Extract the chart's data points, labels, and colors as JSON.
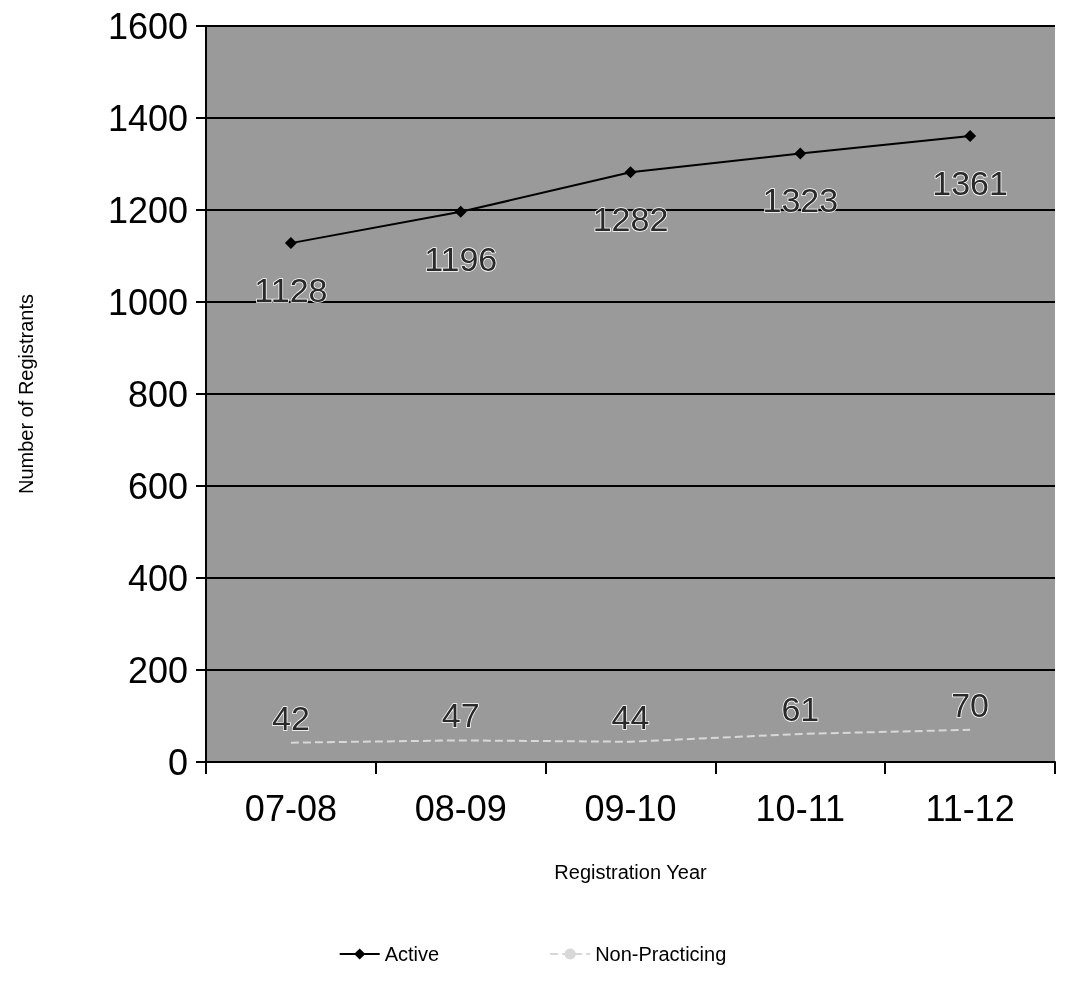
{
  "chart_data": {
    "type": "line",
    "xlabel": "Registration Year",
    "ylabel": "Number of Registrants",
    "categories": [
      "07-08",
      "08-09",
      "09-10",
      "10-11",
      "11-12"
    ],
    "series": [
      {
        "name": "Active",
        "color": "#000000",
        "values": [
          1128,
          1196,
          1282,
          1323,
          1361
        ],
        "marker": "diamond",
        "line_style": "solid"
      },
      {
        "name": "Non-Practicing",
        "color": "#d8d8d8",
        "values": [
          42,
          47,
          44,
          61,
          70
        ],
        "marker": "none",
        "line_style": "dashed"
      }
    ],
    "ylim": [
      0,
      1600
    ],
    "yticks": [
      0,
      200,
      400,
      600,
      800,
      1000,
      1200,
      1400,
      1600
    ],
    "grid": "y",
    "legend": "bottom",
    "data_labels": true
  }
}
